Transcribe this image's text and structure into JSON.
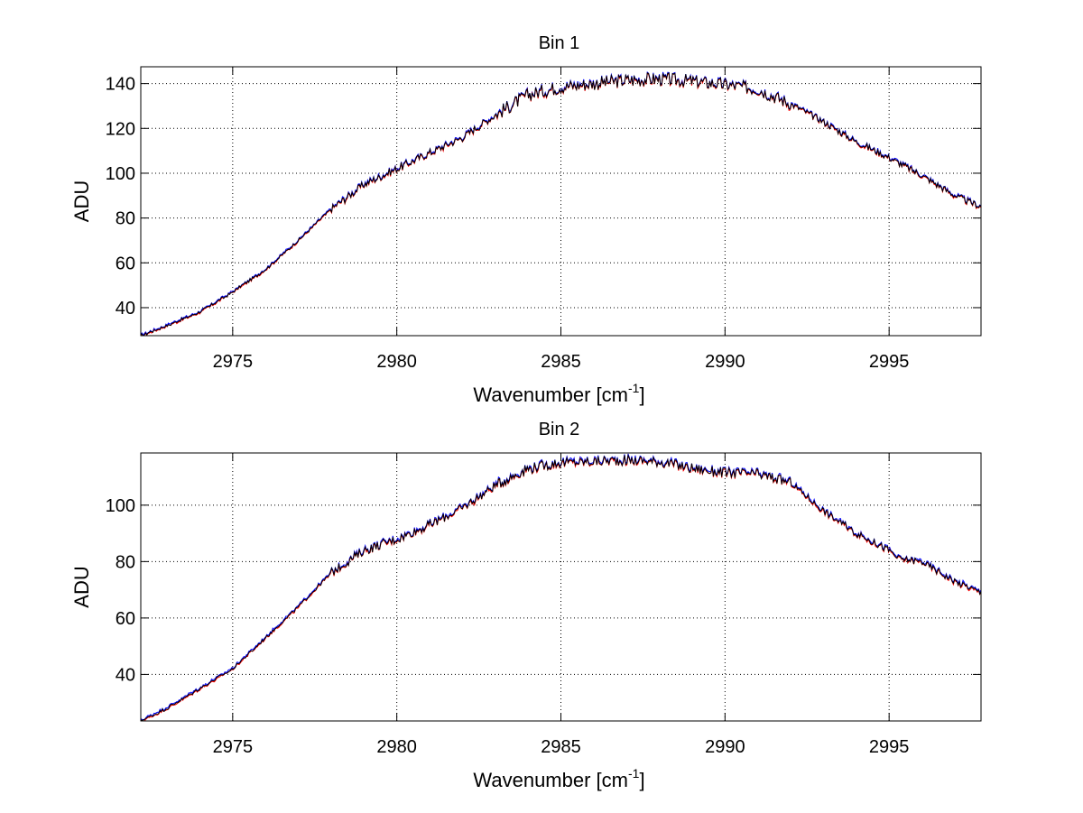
{
  "figure": {
    "background": "#ffffff"
  },
  "chart_data": [
    {
      "type": "line",
      "title": "Bin 1",
      "xlabel": "Wavenumber [cm",
      "xlabel_sup": "-1",
      "xlabel_close": "]",
      "ylabel": "ADU",
      "xlim": [
        2972.2,
        2997.8
      ],
      "ylim": [
        27.5,
        147.5
      ],
      "xticks": [
        2975,
        2980,
        2985,
        2990,
        2995
      ],
      "yticks": [
        40,
        60,
        80,
        100,
        120,
        140
      ],
      "grid": true,
      "colors": {
        "series_a": "#0000ff",
        "series_b": "#ff0000",
        "series_c": "#000000"
      },
      "envelope": [
        {
          "x": 2972.2,
          "y": 27.5
        },
        {
          "x": 2973.0,
          "y": 32.0
        },
        {
          "x": 2974.0,
          "y": 38.0
        },
        {
          "x": 2975.0,
          "y": 47.0
        },
        {
          "x": 2976.0,
          "y": 57.0
        },
        {
          "x": 2977.0,
          "y": 70.0
        },
        {
          "x": 2978.0,
          "y": 84.0
        },
        {
          "x": 2979.0,
          "y": 95.0
        },
        {
          "x": 2980.0,
          "y": 102.0
        },
        {
          "x": 2981.0,
          "y": 109.0
        },
        {
          "x": 2982.0,
          "y": 116.0
        },
        {
          "x": 2983.0,
          "y": 126.0
        },
        {
          "x": 2984.0,
          "y": 135.0
        },
        {
          "x": 2985.0,
          "y": 138.5
        },
        {
          "x": 2986.0,
          "y": 140.0
        },
        {
          "x": 2987.0,
          "y": 141.5
        },
        {
          "x": 2988.0,
          "y": 142.0
        },
        {
          "x": 2989.0,
          "y": 141.0
        },
        {
          "x": 2990.0,
          "y": 139.5
        },
        {
          "x": 2991.0,
          "y": 137.5
        },
        {
          "x": 2992.0,
          "y": 131.0
        },
        {
          "x": 2993.0,
          "y": 123.0
        },
        {
          "x": 2994.0,
          "y": 114.0
        },
        {
          "x": 2995.0,
          "y": 107.0
        },
        {
          "x": 2996.0,
          "y": 99.0
        },
        {
          "x": 2997.0,
          "y": 90.0
        },
        {
          "x": 2997.8,
          "y": 85.0
        }
      ],
      "noise_bands": [
        {
          "from": 2972.2,
          "to": 2978.0,
          "amp": 0.6
        },
        {
          "from": 2978.0,
          "to": 2983.0,
          "amp": 1.8
        },
        {
          "from": 2983.0,
          "to": 2992.0,
          "amp": 3.0
        },
        {
          "from": 2992.0,
          "to": 2997.8,
          "amp": 1.5
        }
      ]
    },
    {
      "type": "line",
      "title": "Bin 2",
      "xlabel": "Wavenumber [cm",
      "xlabel_sup": "-1",
      "xlabel_close": "]",
      "ylabel": "ADU",
      "xlim": [
        2972.2,
        2997.8
      ],
      "ylim": [
        23.5,
        118.5
      ],
      "xticks": [
        2975,
        2980,
        2985,
        2990,
        2995
      ],
      "yticks": [
        40,
        60,
        80,
        100
      ],
      "grid": true,
      "colors": {
        "series_a": "#0000ff",
        "series_b": "#ff0000",
        "series_c": "#000000"
      },
      "envelope": [
        {
          "x": 2972.2,
          "y": 23.5
        },
        {
          "x": 2973.0,
          "y": 28.0
        },
        {
          "x": 2974.0,
          "y": 35.0
        },
        {
          "x": 2975.0,
          "y": 42.0
        },
        {
          "x": 2976.0,
          "y": 53.0
        },
        {
          "x": 2977.0,
          "y": 64.0
        },
        {
          "x": 2978.0,
          "y": 76.0
        },
        {
          "x": 2979.0,
          "y": 84.0
        },
        {
          "x": 2980.0,
          "y": 88.0
        },
        {
          "x": 2981.0,
          "y": 93.0
        },
        {
          "x": 2982.0,
          "y": 99.0
        },
        {
          "x": 2983.0,
          "y": 107.0
        },
        {
          "x": 2984.0,
          "y": 113.0
        },
        {
          "x": 2985.0,
          "y": 115.0
        },
        {
          "x": 2986.0,
          "y": 115.5
        },
        {
          "x": 2987.0,
          "y": 116.0
        },
        {
          "x": 2988.0,
          "y": 115.5
        },
        {
          "x": 2989.0,
          "y": 113.0
        },
        {
          "x": 2990.0,
          "y": 111.5
        },
        {
          "x": 2991.0,
          "y": 111.0
        },
        {
          "x": 2992.0,
          "y": 108.0
        },
        {
          "x": 2993.0,
          "y": 98.0
        },
        {
          "x": 2994.0,
          "y": 90.0
        },
        {
          "x": 2995.0,
          "y": 84.0
        },
        {
          "x": 2995.3,
          "y": 81.0
        },
        {
          "x": 2996.0,
          "y": 80.0
        },
        {
          "x": 2997.0,
          "y": 73.0
        },
        {
          "x": 2997.8,
          "y": 69.0
        }
      ],
      "noise_bands": [
        {
          "from": 2972.2,
          "to": 2978.0,
          "amp": 0.5
        },
        {
          "from": 2978.0,
          "to": 2983.0,
          "amp": 1.6
        },
        {
          "from": 2983.0,
          "to": 2992.0,
          "amp": 1.8
        },
        {
          "from": 2992.0,
          "to": 2997.8,
          "amp": 1.2
        }
      ]
    }
  ]
}
